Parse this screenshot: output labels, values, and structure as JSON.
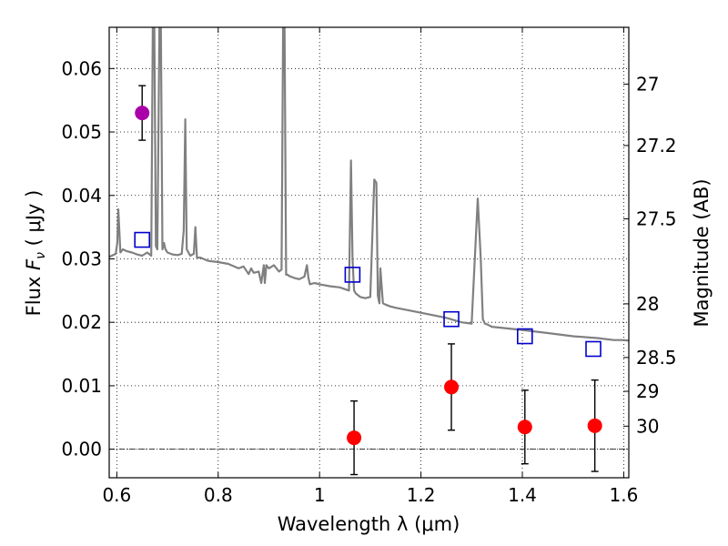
{
  "chart_data": {
    "type": "scatter",
    "xlabel": "Wavelength  λ (μm)",
    "ylabel": "Flux  F_ν  ( μJy )",
    "ylabel_parts": {
      "pre": "Flux  ",
      "italic": "F",
      "sub": "ν",
      "post": "  ( μJy )"
    },
    "y2label": "Magnitude (AB)",
    "xlim": [
      0.585,
      1.61
    ],
    "ylim": [
      -0.0045,
      0.0665
    ],
    "grid": true,
    "x_ticks": [
      {
        "v": 0.6,
        "label": "0.6"
      },
      {
        "v": 0.8,
        "label": "0.8"
      },
      {
        "v": 1.0,
        "label": "1"
      },
      {
        "v": 1.2,
        "label": "1.2"
      },
      {
        "v": 1.4,
        "label": "1.4"
      },
      {
        "v": 1.6,
        "label": "1.6"
      }
    ],
    "y_ticks": [
      {
        "v": 0.0,
        "label": "0.00"
      },
      {
        "v": 0.01,
        "label": "0.01"
      },
      {
        "v": 0.02,
        "label": "0.02"
      },
      {
        "v": 0.03,
        "label": "0.03"
      },
      {
        "v": 0.04,
        "label": "0.04"
      },
      {
        "v": 0.05,
        "label": "0.05"
      },
      {
        "v": 0.06,
        "label": "0.06"
      }
    ],
    "y2_ticks": [
      {
        "mag": 27,
        "label": "27"
      },
      {
        "mag": 27.2,
        "label": "27.2"
      },
      {
        "mag": 27.5,
        "label": "27.5"
      },
      {
        "mag": 28,
        "label": "28"
      },
      {
        "mag": 28.5,
        "label": "28.5"
      },
      {
        "mag": 29,
        "label": "29"
      },
      {
        "mag": 30,
        "label": "30"
      }
    ],
    "series": [
      {
        "type": "line",
        "color": "#808080",
        "x": [
          0.585,
          0.598,
          0.601,
          0.603,
          0.607,
          0.612,
          0.62,
          0.63,
          0.64,
          0.65,
          0.66,
          0.668,
          0.671,
          0.674,
          0.677,
          0.68,
          0.684,
          0.687,
          0.69,
          0.693,
          0.696,
          0.7,
          0.71,
          0.72,
          0.728,
          0.732,
          0.735,
          0.738,
          0.745,
          0.752,
          0.755,
          0.758,
          0.765,
          0.78,
          0.8,
          0.82,
          0.84,
          0.85,
          0.86,
          0.865,
          0.87,
          0.88,
          0.885,
          0.89,
          0.892,
          0.895,
          0.9,
          0.91,
          0.92,
          0.925,
          0.928,
          0.931,
          0.934,
          0.937,
          0.94,
          0.95,
          0.96,
          0.97,
          0.975,
          0.978,
          0.981,
          0.99,
          1.0,
          1.02,
          1.04,
          1.058,
          1.062,
          1.065,
          1.068,
          1.072,
          1.08,
          1.09,
          1.1,
          1.108,
          1.112,
          1.115,
          1.118,
          1.12,
          1.125,
          1.13,
          1.14,
          1.15,
          1.2,
          1.25,
          1.28,
          1.3,
          1.312,
          1.318,
          1.322,
          1.326,
          1.33,
          1.34,
          1.4,
          1.45,
          1.5,
          1.55,
          1.58,
          1.6,
          1.61
        ],
        "y": [
          0.0303,
          0.0308,
          0.0325,
          0.0378,
          0.031,
          0.0315,
          0.0312,
          0.031,
          0.0307,
          0.0305,
          0.031,
          0.0305,
          0.0665,
          0.0665,
          0.032,
          0.0315,
          0.0665,
          0.0665,
          0.0315,
          0.0325,
          0.0315,
          0.031,
          0.0307,
          0.0306,
          0.0308,
          0.0345,
          0.052,
          0.0315,
          0.0305,
          0.0308,
          0.035,
          0.0302,
          0.0302,
          0.0297,
          0.0295,
          0.0292,
          0.0285,
          0.0288,
          0.0276,
          0.0285,
          0.0278,
          0.028,
          0.0262,
          0.029,
          0.0262,
          0.029,
          0.0285,
          0.029,
          0.028,
          0.0283,
          0.0665,
          0.0665,
          0.0275,
          0.0275,
          0.0273,
          0.027,
          0.0268,
          0.0272,
          0.029,
          0.027,
          0.026,
          0.0262,
          0.026,
          0.0257,
          0.0255,
          0.025,
          0.0455,
          0.03,
          0.025,
          0.0245,
          0.024,
          0.0238,
          0.024,
          0.0425,
          0.042,
          0.0242,
          0.023,
          0.0285,
          0.023,
          0.0228,
          0.0225,
          0.0223,
          0.0215,
          0.0207,
          0.02,
          0.0198,
          0.0395,
          0.03,
          0.0205,
          0.0198,
          0.0197,
          0.0193,
          0.0188,
          0.0183,
          0.0178,
          0.0175,
          0.0172,
          0.0172,
          0.0171
        ]
      },
      {
        "type": "marker-square",
        "color": "#0000cc",
        "x": [
          0.65,
          1.065,
          1.26,
          1.405,
          1.54
        ],
        "y": [
          0.033,
          0.0275,
          0.0205,
          0.0178,
          0.0158
        ]
      },
      {
        "type": "marker-circle",
        "color": "#ff0000",
        "x": [
          1.068,
          1.26,
          1.405,
          1.543
        ],
        "y": [
          0.0018,
          0.0098,
          0.0035,
          0.0037
        ],
        "err": [
          0.0058,
          0.0068,
          0.0058,
          0.0072
        ]
      },
      {
        "type": "marker-circle",
        "color": "#aa00aa",
        "x": [
          0.65
        ],
        "y": [
          0.053
        ],
        "err": [
          0.0043
        ]
      }
    ]
  }
}
